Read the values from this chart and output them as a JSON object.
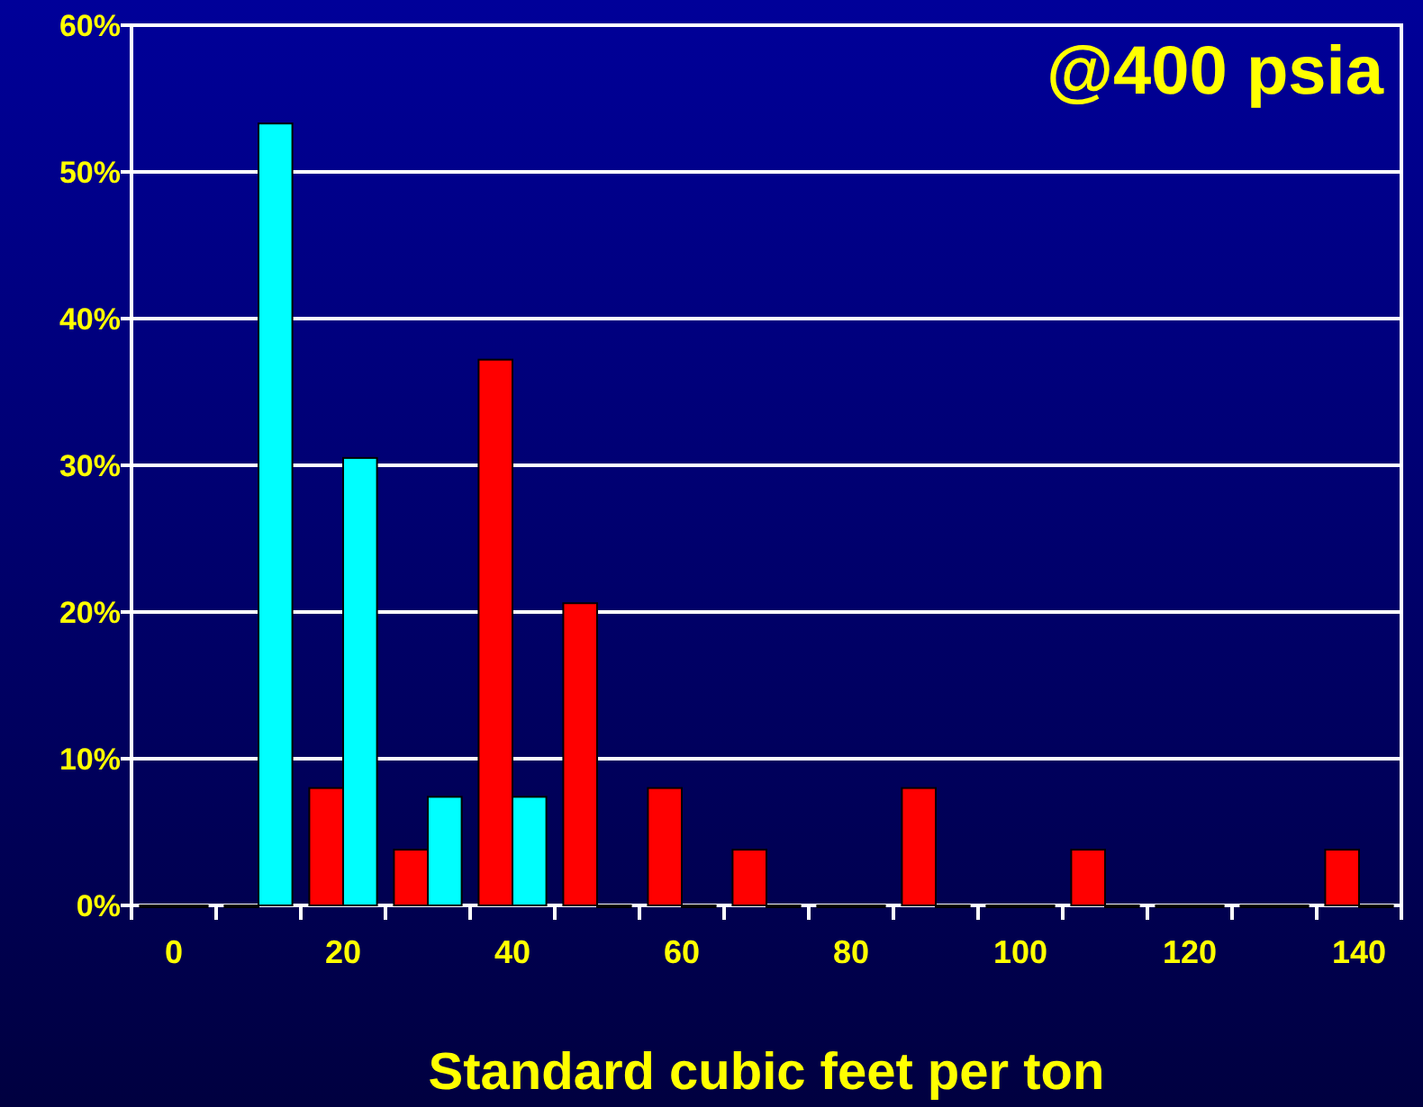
{
  "chart_data": {
    "type": "bar",
    "xlabel": "Standard cubic feet per ton",
    "annotations": [
      "@400 psia"
    ],
    "categories": [
      "0",
      null,
      "20",
      null,
      "40",
      null,
      "60",
      null,
      "80",
      null,
      "100",
      null,
      "120",
      null,
      "140"
    ],
    "series": [
      {
        "color": "#ff0000",
        "values": [
          0,
          0,
          8,
          3.8,
          37.2,
          20.6,
          8,
          3.8,
          0,
          8,
          0,
          3.8,
          0,
          0,
          3.8
        ]
      },
      {
        "color": "#00ffff",
        "values": [
          0,
          53.3,
          30.5,
          7.4,
          7.4,
          0,
          0,
          0,
          0,
          0,
          0,
          0,
          0,
          0,
          0
        ]
      }
    ],
    "ylim": [
      0,
      60
    ],
    "yticks": [
      {
        "value": 0,
        "label": "0%"
      },
      {
        "value": 10,
        "label": "10%"
      },
      {
        "value": 20,
        "label": "20%"
      },
      {
        "value": 30,
        "label": "30%"
      },
      {
        "value": 40,
        "label": "40%"
      },
      {
        "value": 50,
        "label": "50%"
      },
      {
        "value": 60,
        "label": "60%"
      }
    ],
    "grid": "y"
  }
}
